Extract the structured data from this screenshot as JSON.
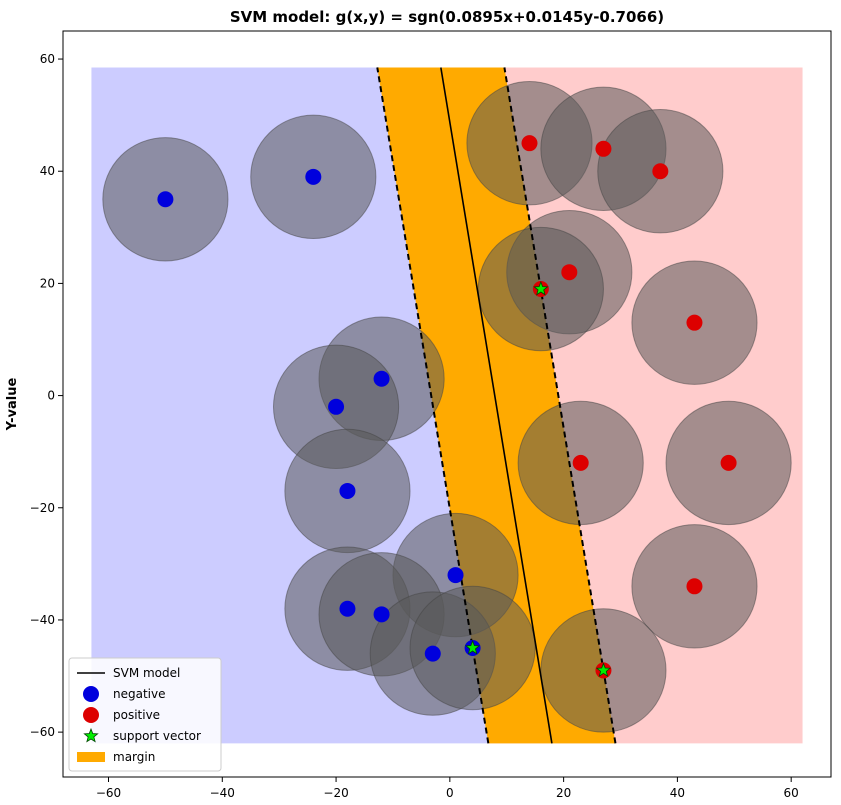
{
  "chart_data": {
    "type": "scatter",
    "title": "SVM model: g(x,y) = sgn(0.0895x+0.0145y-0.7066)",
    "xlabel": "",
    "ylabel": "Y-value",
    "xlim": [
      -68,
      67
    ],
    "ylim": [
      -68,
      65
    ],
    "xticks": [
      -60,
      -40,
      -20,
      0,
      20,
      40,
      60
    ],
    "yticks": [
      -60,
      -40,
      -20,
      0,
      20,
      40,
      60
    ],
    "xtick_labels": [
      "−60",
      "−40",
      "−20",
      "0",
      "20",
      "40",
      "60"
    ],
    "ytick_labels": [
      "−60",
      "−40",
      "−20",
      "0",
      "20",
      "40",
      "60"
    ],
    "model": {
      "a": 0.0895,
      "b": 0.0145,
      "c": -0.7066
    },
    "margin_offset": 11.2,
    "region_bounds": {
      "x": [
        -63,
        62
      ],
      "y": [
        -62,
        58.5
      ]
    },
    "circle_radius": 11,
    "negative": [
      {
        "x": -50,
        "y": 35
      },
      {
        "x": -24,
        "y": 39
      },
      {
        "x": -12,
        "y": 3
      },
      {
        "x": -20,
        "y": -2
      },
      {
        "x": -18,
        "y": -17
      },
      {
        "x": 1,
        "y": -32
      },
      {
        "x": -18,
        "y": -38
      },
      {
        "x": -12,
        "y": -39
      },
      {
        "x": -3,
        "y": -46
      },
      {
        "x": 4,
        "y": -45
      }
    ],
    "positive": [
      {
        "x": 14,
        "y": 45
      },
      {
        "x": 27,
        "y": 44
      },
      {
        "x": 37,
        "y": 40
      },
      {
        "x": 21,
        "y": 22
      },
      {
        "x": 16,
        "y": 19
      },
      {
        "x": 43,
        "y": 13
      },
      {
        "x": 23,
        "y": -12
      },
      {
        "x": 49,
        "y": -12
      },
      {
        "x": 43,
        "y": -34
      },
      {
        "x": 27,
        "y": -49
      }
    ],
    "support_vectors": [
      {
        "x": 16,
        "y": 19
      },
      {
        "x": 4,
        "y": -45
      },
      {
        "x": 27,
        "y": -49
      }
    ],
    "legend": {
      "placement": "lower-left",
      "entries": [
        {
          "label": "SVM model",
          "kind": "line"
        },
        {
          "label": "negative",
          "kind": "negative"
        },
        {
          "label": "positive",
          "kind": "positive"
        },
        {
          "label": "support vector",
          "kind": "star"
        },
        {
          "label": "margin",
          "kind": "margin"
        }
      ]
    },
    "colors": {
      "negative_region": "#ccccff",
      "positive_region": "#ffcccc",
      "margin": "#ffaa00",
      "negative_point": "#0000dd",
      "positive_point": "#dd0000",
      "support_vector": "#00ee00",
      "circle": "#5a5a5a"
    }
  }
}
